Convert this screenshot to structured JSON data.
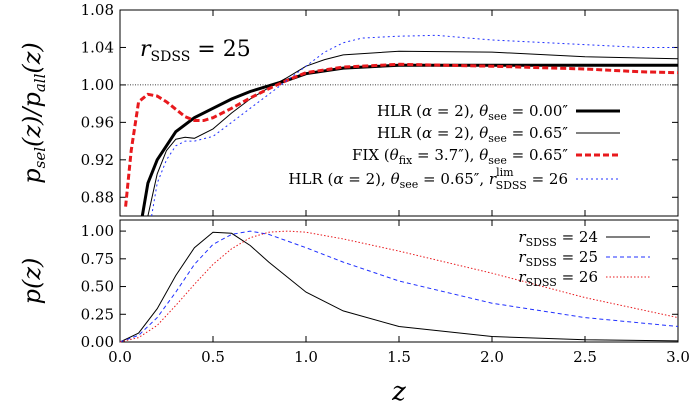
{
  "chart_data": [
    {
      "type": "line",
      "ylabel": "p_sel(z)/p_all(z)",
      "annotation": "r_SDSS = 25",
      "xlim": [
        0,
        3
      ],
      "ylim": [
        0.86,
        1.08
      ],
      "yticks": [
        "0.88",
        "0.92",
        "0.96",
        "1.00",
        "1.04",
        "1.08"
      ],
      "reference_line": 1.0,
      "legend_position": "center-right",
      "series": [
        {
          "name": "HLR (α = 2), θ_see = 0.00″",
          "color": "#000000",
          "style": "solid-thick",
          "x": [
            0.12,
            0.15,
            0.2,
            0.3,
            0.4,
            0.5,
            0.6,
            0.7,
            0.8,
            0.9,
            1.0,
            1.2,
            1.5,
            2.0,
            2.5,
            3.0
          ],
          "y": [
            0.86,
            0.895,
            0.92,
            0.95,
            0.965,
            0.975,
            0.985,
            0.993,
            0.999,
            1.005,
            1.012,
            1.018,
            1.021,
            1.021,
            1.021,
            1.021
          ]
        },
        {
          "name": "HLR (α = 2), θ_see = 0.65″",
          "color": "#000000",
          "style": "solid-thin",
          "x": [
            0.15,
            0.2,
            0.25,
            0.3,
            0.35,
            0.4,
            0.5,
            0.6,
            0.7,
            0.8,
            0.9,
            1.0,
            1.1,
            1.2,
            1.5,
            2.0,
            2.5,
            3.0
          ],
          "y": [
            0.86,
            0.905,
            0.93,
            0.942,
            0.944,
            0.943,
            0.953,
            0.97,
            0.985,
            0.997,
            1.008,
            1.02,
            1.027,
            1.032,
            1.036,
            1.035,
            1.03,
            1.028
          ]
        },
        {
          "name": "FIX (θ_fix = 3.7″), θ_see = 0.65″",
          "color": "#e8191d",
          "style": "dashed-thick",
          "x": [
            0.03,
            0.06,
            0.1,
            0.15,
            0.2,
            0.25,
            0.3,
            0.35,
            0.4,
            0.45,
            0.5,
            0.6,
            0.7,
            0.8,
            0.9,
            1.0,
            1.2,
            1.5,
            2.0,
            2.5,
            2.8,
            3.0
          ],
          "y": [
            0.87,
            0.93,
            0.982,
            0.99,
            0.988,
            0.982,
            0.974,
            0.966,
            0.962,
            0.962,
            0.965,
            0.975,
            0.986,
            0.996,
            1.005,
            1.013,
            1.019,
            1.022,
            1.02,
            1.017,
            1.014,
            1.013
          ]
        },
        {
          "name": "HLR (α = 2), θ_see = 0.65″, r_SDSS^lim = 26",
          "color": "#2030ff",
          "style": "dotted",
          "x": [
            0.17,
            0.2,
            0.25,
            0.3,
            0.35,
            0.4,
            0.5,
            0.6,
            0.7,
            0.8,
            0.9,
            1.0,
            1.1,
            1.2,
            1.3,
            1.5,
            1.7,
            2.0,
            2.3,
            2.5,
            2.8,
            3.0
          ],
          "y": [
            0.86,
            0.895,
            0.92,
            0.935,
            0.94,
            0.94,
            0.945,
            0.96,
            0.975,
            0.99,
            1.005,
            1.02,
            1.035,
            1.045,
            1.05,
            1.052,
            1.053,
            1.048,
            1.045,
            1.043,
            1.04,
            1.04
          ]
        }
      ]
    },
    {
      "type": "line",
      "ylabel": "p(z)",
      "xlabel": "z",
      "xlim": [
        0,
        3
      ],
      "ylim": [
        0,
        1.1
      ],
      "xticks": [
        "0.0",
        "0.5",
        "1.0",
        "1.5",
        "2.0",
        "2.5",
        "3.0"
      ],
      "yticks": [
        "0.00",
        "0.25",
        "0.50",
        "0.75",
        "1.00"
      ],
      "legend_position": "top-right",
      "series": [
        {
          "name": "r_SDSS = 24",
          "color": "#000000",
          "style": "solid",
          "x": [
            0,
            0.1,
            0.2,
            0.3,
            0.4,
            0.5,
            0.6,
            0.7,
            0.8,
            1.0,
            1.2,
            1.5,
            2.0,
            2.5,
            3.0
          ],
          "y": [
            0,
            0.08,
            0.3,
            0.6,
            0.85,
            0.99,
            0.98,
            0.87,
            0.72,
            0.45,
            0.28,
            0.14,
            0.05,
            0.02,
            0.01
          ]
        },
        {
          "name": "r_SDSS = 25",
          "color": "#2030ff",
          "style": "dashed",
          "x": [
            0,
            0.1,
            0.2,
            0.3,
            0.4,
            0.5,
            0.6,
            0.7,
            0.8,
            1.0,
            1.2,
            1.5,
            2.0,
            2.5,
            3.0
          ],
          "y": [
            0,
            0.06,
            0.22,
            0.45,
            0.7,
            0.88,
            0.97,
            1.0,
            0.97,
            0.85,
            0.72,
            0.55,
            0.35,
            0.22,
            0.14
          ]
        },
        {
          "name": "r_SDSS = 26",
          "color": "#e8191d",
          "style": "dotted",
          "x": [
            0,
            0.1,
            0.2,
            0.3,
            0.4,
            0.5,
            0.6,
            0.7,
            0.8,
            0.9,
            1.0,
            1.2,
            1.5,
            2.0,
            2.5,
            3.0
          ],
          "y": [
            0,
            0.04,
            0.15,
            0.33,
            0.52,
            0.7,
            0.84,
            0.94,
            0.99,
            1.0,
            0.99,
            0.93,
            0.82,
            0.62,
            0.4,
            0.22
          ]
        }
      ]
    }
  ]
}
